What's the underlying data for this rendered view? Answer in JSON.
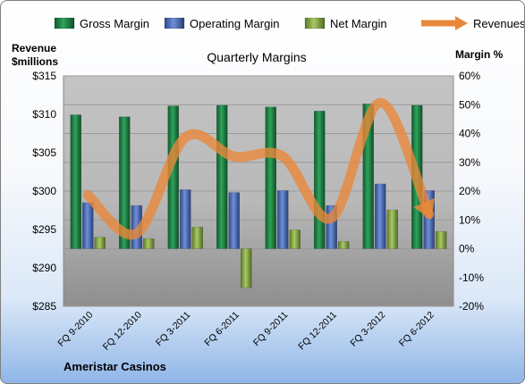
{
  "chart_data": {
    "type": "bar",
    "title": "Quarterly Margins",
    "company": "Ameristar Casinos",
    "y_left_label_line1": "Revenue",
    "y_left_label_line2": "$millions",
    "y_right_label": "Margin %",
    "categories": [
      "FQ 9-2010",
      "FQ 12-2010",
      "FQ 3-2011",
      "FQ 6-2011",
      "FQ 9-2011",
      "FQ 12-2011",
      "FQ 3-2012",
      "FQ 6-2012"
    ],
    "left_ticks": [
      "$285",
      "$290",
      "$295",
      "$300",
      "$305",
      "$310",
      "$315"
    ],
    "right_ticks": [
      "-20%",
      "-10%",
      "0%",
      "10%",
      "20%",
      "30%",
      "40%",
      "50%",
      "60%"
    ],
    "ylim_left": [
      285,
      315
    ],
    "ylim_right": [
      -20,
      60
    ],
    "grid": true,
    "legend_position": "top",
    "series": [
      {
        "name": "Gross Margin",
        "axis": "right",
        "color": "#1e8c4a",
        "values": [
          46.5,
          45.8,
          49.6,
          49.8,
          49.2,
          47.8,
          50.3,
          49.8
        ]
      },
      {
        "name": "Operating Margin",
        "axis": "right",
        "color": "#4f6fbf",
        "values": [
          16.0,
          15.0,
          20.5,
          19.5,
          20.2,
          15.0,
          22.5,
          20.2
        ]
      },
      {
        "name": "Net Margin",
        "axis": "right",
        "color": "#8db04a",
        "values": [
          4.0,
          3.5,
          7.5,
          -13.5,
          6.5,
          2.5,
          13.5,
          6.0
        ]
      },
      {
        "name": "Revenues",
        "axis": "left",
        "color": "#e8883a",
        "type": "line",
        "values": [
          299.5,
          294.5,
          307.0,
          304.5,
          304.5,
          296.5,
          311.5,
          297.0
        ]
      }
    ]
  }
}
